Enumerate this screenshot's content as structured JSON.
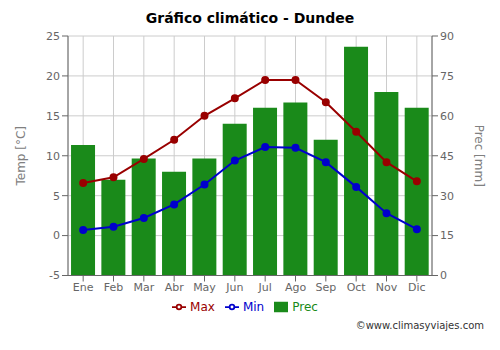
{
  "chart_data": {
    "type": "bar",
    "title": "Gráfico climático - Dundee",
    "categories": [
      "Ene",
      "Feb",
      "Mar",
      "Abr",
      "May",
      "Jun",
      "Jul",
      "Ago",
      "Sep",
      "Oct",
      "Nov",
      "Dic"
    ],
    "series": [
      {
        "name": "Prec",
        "type": "bar",
        "axis": "y2",
        "color": "#1a8a1a",
        "values": [
          49,
          36,
          44,
          39,
          44,
          57,
          63,
          65,
          51,
          86,
          69,
          63
        ]
      },
      {
        "name": "Min",
        "type": "line",
        "color": "#0000cc",
        "marker": "circle",
        "values": [
          0.7,
          1.1,
          2.2,
          3.9,
          6.4,
          9.4,
          11.1,
          11.0,
          9.2,
          6.1,
          2.8,
          0.8
        ]
      },
      {
        "name": "Max",
        "type": "line",
        "color": "#990000",
        "marker": "circle",
        "values": [
          6.6,
          7.3,
          9.6,
          12.0,
          15.0,
          17.2,
          19.5,
          19.5,
          16.7,
          13.0,
          9.2,
          6.8
        ]
      }
    ],
    "ylim": [
      -5,
      25
    ],
    "yticks": [
      -5,
      0,
      5,
      10,
      15,
      20,
      25
    ],
    "y2lim": [
      0,
      90
    ],
    "y2ticks": [
      0,
      15,
      30,
      45,
      60,
      75,
      90
    ],
    "ylabel": "Temp [°C]",
    "y2label": "Prec [mm]",
    "grid": true,
    "legend": "bottom",
    "annotations": [
      "©www.climasyviajes.com"
    ]
  }
}
